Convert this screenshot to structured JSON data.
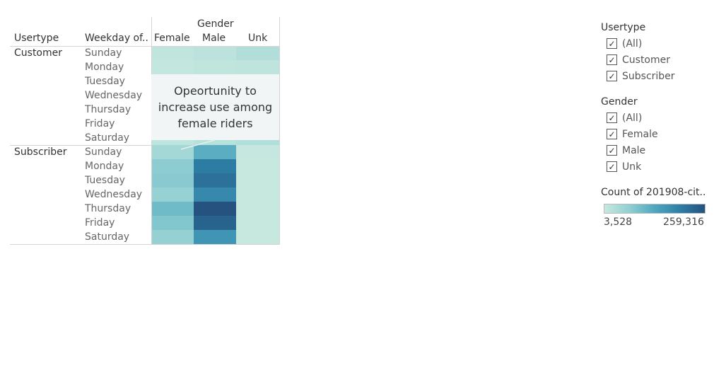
{
  "chart_data": {
    "type": "heatmap",
    "column_group_header": "Gender",
    "row_headers": [
      "Usertype",
      "Weekday of.."
    ],
    "columns": [
      "Female",
      "Male",
      "Unk"
    ],
    "row_groups": [
      {
        "usertype": "Customer",
        "rows": [
          {
            "weekday": "Sunday",
            "values": [
              12000,
              18000,
              28000
            ]
          },
          {
            "weekday": "Monday",
            "values": [
              8000,
              12000,
              14000
            ]
          },
          {
            "weekday": "Tuesday",
            "values": [
              7000,
              11000,
              13000
            ]
          },
          {
            "weekday": "Wednesday",
            "values": [
              7000,
              11000,
              13000
            ]
          },
          {
            "weekday": "Thursday",
            "values": [
              8000,
              12000,
              14000
            ]
          },
          {
            "weekday": "Friday",
            "values": [
              9000,
              13000,
              15000
            ]
          },
          {
            "weekday": "Saturday",
            "values": [
              15000,
              22000,
              30000
            ]
          }
        ]
      },
      {
        "usertype": "Subscriber",
        "rows": [
          {
            "weekday": "Sunday",
            "values": [
              45000,
              120000,
              5000
            ]
          },
          {
            "weekday": "Monday",
            "values": [
              70000,
              200000,
              4000
            ]
          },
          {
            "weekday": "Tuesday",
            "values": [
              75000,
              215000,
              4000
            ]
          },
          {
            "weekday": "Wednesday",
            "values": [
              60000,
              180000,
              4000
            ]
          },
          {
            "weekday": "Thursday",
            "values": [
              100000,
              259316,
              4000
            ]
          },
          {
            "weekday": "Friday",
            "values": [
              80000,
              235000,
              4000
            ]
          },
          {
            "weekday": "Saturday",
            "values": [
              62000,
              160000,
              3528
            ]
          }
        ]
      }
    ],
    "annotation": {
      "lines": [
        "Opeortunity to",
        "increase use among",
        "female riders"
      ]
    },
    "color_range": {
      "min": 3528,
      "max": 259316,
      "min_label": "3,528",
      "max_label": "259,316"
    },
    "color_stops": [
      "#c7e8df",
      "#90cfd2",
      "#4fa7bf",
      "#2e7fa6",
      "#25527f"
    ]
  },
  "filters": [
    {
      "title": "Usertype",
      "items": [
        "(All)",
        "Customer",
        "Subscriber"
      ]
    },
    {
      "title": "Gender",
      "items": [
        "(All)",
        "Female",
        "Male",
        "Unk"
      ]
    }
  ],
  "color_legend": {
    "title": "Count of 201908-cit..",
    "min_label": "3,528",
    "max_label": "259,316"
  },
  "checkmark_glyph": "✓"
}
